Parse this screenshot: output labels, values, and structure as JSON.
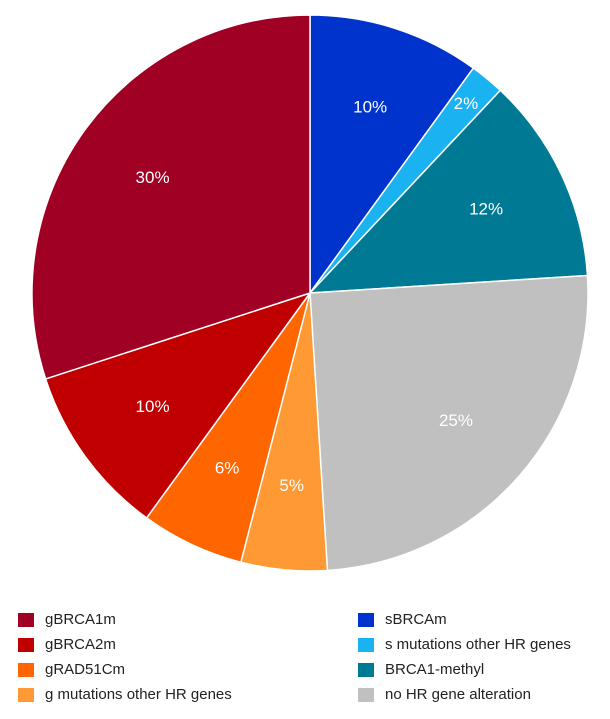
{
  "chart_data": {
    "type": "pie",
    "categories": [
      "sBRCAm",
      "s mutations other HR genes",
      "BRCA1-methyl",
      "no HR gene alteration",
      "g mutations other HR genes",
      "gRAD51Cm",
      "gBRCA2m",
      "gBRCA1m"
    ],
    "values": [
      10,
      2,
      12,
      25,
      5,
      6,
      10,
      30
    ],
    "value_labels": [
      "10%",
      "2%",
      "12%",
      "25%",
      "5%",
      "6%",
      "10%",
      "30%"
    ],
    "colors": [
      "#0033cc",
      "#1ab2f0",
      "#007a94",
      "#c0c0c0",
      "#ff9933",
      "#ff6600",
      "#c00000",
      "#a00024"
    ]
  }
}
